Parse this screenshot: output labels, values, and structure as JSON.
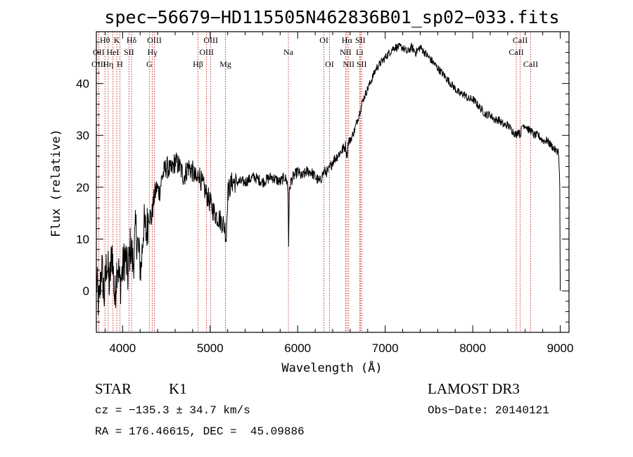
{
  "colors": {
    "axis": "#000000",
    "spectrum": "#000000",
    "lines": "#c00000",
    "background": "#ffffff"
  },
  "info": {
    "class": "STAR",
    "subclass": "K1",
    "survey": "LAMOST DR3",
    "cz": "cz = −135.3 ± 34.7 km/s",
    "obs_date": "Obs−Date: 20140121",
    "radec": "RA = 176.46615, DEC =  45.09886"
  },
  "chart_data": {
    "type": "line",
    "title": "spec−56679−HD115505N462836B01_sp02−033.fits",
    "xlabel": "Wavelength (Å)",
    "ylabel": "Flux (relative)",
    "xlim": [
      3700,
      9100
    ],
    "ylim": [
      -8,
      50
    ],
    "xticks": [
      4000,
      5000,
      6000,
      7000,
      8000,
      9000
    ],
    "yticks": [
      0,
      10,
      20,
      30,
      40
    ],
    "spectrum": {
      "name": "flux",
      "x": [
        3700,
        3730,
        3760,
        3790,
        3820,
        3850,
        3880,
        3910,
        3940,
        3970,
        4000,
        4030,
        4060,
        4090,
        4120,
        4150,
        4180,
        4210,
        4240,
        4270,
        4300,
        4330,
        4360,
        4390,
        4420,
        4450,
        4500,
        4550,
        4600,
        4650,
        4700,
        4750,
        4800,
        4850,
        4870,
        4900,
        4950,
        5000,
        5050,
        5100,
        5150,
        5170,
        5184,
        5200,
        5250,
        5300,
        5400,
        5500,
        5600,
        5700,
        5800,
        5850,
        5880,
        5890,
        5896,
        5905,
        5920,
        5950,
        6000,
        6050,
        6100,
        6150,
        6200,
        6250,
        6300,
        6350,
        6400,
        6450,
        6500,
        6550,
        6563,
        6580,
        6600,
        6650,
        6700,
        6750,
        6800,
        6850,
        6900,
        6950,
        7000,
        7050,
        7100,
        7150,
        7200,
        7250,
        7300,
        7350,
        7400,
        7450,
        7500,
        7550,
        7600,
        7650,
        7700,
        7750,
        7800,
        7850,
        7900,
        7950,
        8000,
        8050,
        8100,
        8150,
        8200,
        8250,
        8300,
        8350,
        8400,
        8450,
        8498,
        8520,
        8542,
        8570,
        8600,
        8640,
        8662,
        8700,
        8750,
        8800,
        8850,
        8900,
        8950,
        8980,
        8995,
        9000
      ],
      "y": [
        2,
        -3,
        5,
        -1,
        6,
        1,
        8,
        -2,
        6,
        1,
        4,
        7,
        3,
        9,
        5,
        12,
        8,
        4,
        13,
        11,
        15,
        14,
        18,
        20,
        19,
        22,
        24,
        23,
        25,
        24,
        22,
        24,
        23,
        21,
        23,
        21,
        19,
        17,
        15,
        14,
        13,
        12,
        10,
        19,
        21,
        21,
        21,
        22,
        21,
        22,
        21,
        22,
        21,
        19,
        9,
        19,
        21,
        22,
        23,
        22,
        23,
        23,
        22,
        21,
        23,
        23,
        25,
        26,
        27,
        28,
        26,
        29,
        29,
        31,
        34,
        37,
        39,
        41,
        43,
        44,
        45,
        46,
        47,
        47,
        47,
        46,
        47,
        46,
        47,
        46,
        45,
        44,
        43,
        42,
        41,
        40,
        39,
        38,
        38,
        37,
        37,
        36,
        35,
        34,
        34,
        33,
        33,
        32,
        32,
        31,
        30,
        31,
        30,
        32,
        32,
        31,
        31,
        30,
        30,
        29,
        29,
        28,
        27,
        27,
        20,
        0
      ]
    },
    "spectral_lines": [
      {
        "label": "Hθ",
        "x": 3798,
        "row": 0
      },
      {
        "label": "OII",
        "x": 3727,
        "row": 1
      },
      {
        "label": "OIII",
        "x": 3727,
        "row": 2
      },
      {
        "label": "Hη",
        "x": 3835,
        "row": 2
      },
      {
        "label": "HeI",
        "x": 3889,
        "row": 1
      },
      {
        "label": "K",
        "x": 3934,
        "row": 0
      },
      {
        "label": "H",
        "x": 3969,
        "row": 2
      },
      {
        "label": "SII",
        "x": 4072,
        "row": 1
      },
      {
        "label": "Hδ",
        "x": 4102,
        "row": 0
      },
      {
        "label": "OIII",
        "x": 4363,
        "row": 0
      },
      {
        "label": "Hγ",
        "x": 4340,
        "row": 1
      },
      {
        "label": "G",
        "x": 4305,
        "row": 2
      },
      {
        "label": "Hβ",
        "x": 4861,
        "row": 2
      },
      {
        "label": "OIII",
        "x": 5007,
        "row": 0
      },
      {
        "label": "OIII",
        "x": 4959,
        "row": 1
      },
      {
        "label": "Mg",
        "x": 5175,
        "row": 2
      },
      {
        "label": "Na",
        "x": 5894,
        "row": 1
      },
      {
        "label": "OI",
        "x": 6300,
        "row": 0
      },
      {
        "label": "OI",
        "x": 6364,
        "row": 2
      },
      {
        "label": "Hα",
        "x": 6563,
        "row": 0
      },
      {
        "label": "NII",
        "x": 6548,
        "row": 1
      },
      {
        "label": "NII",
        "x": 6583,
        "row": 2
      },
      {
        "label": "SII",
        "x": 6716,
        "row": 0
      },
      {
        "label": "Li",
        "x": 6708,
        "row": 1
      },
      {
        "label": "SII",
        "x": 6731,
        "row": 2
      },
      {
        "label": "CaII",
        "x": 8542,
        "row": 0
      },
      {
        "label": "CaII",
        "x": 8498,
        "row": 1
      },
      {
        "label": "CaII",
        "x": 8662,
        "row": 2
      }
    ]
  }
}
